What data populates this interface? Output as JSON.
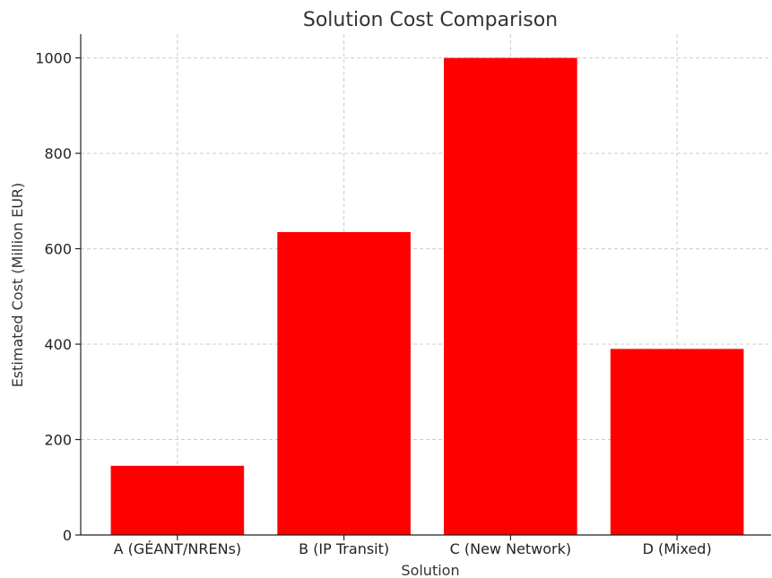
{
  "chart_data": {
    "type": "bar",
    "title": "Solution Cost Comparison",
    "xlabel": "Solution",
    "ylabel": "Estimated Cost (Million EUR)",
    "categories": [
      "A (GÉANT/NRENs)",
      "B (IP Transit)",
      "C (New Network)",
      "D (Mixed)"
    ],
    "values": [
      145,
      635,
      1000,
      390
    ],
    "ylim": [
      0,
      1050
    ],
    "yticks": [
      0,
      200,
      400,
      600,
      800,
      1000
    ],
    "grid": true,
    "bar_color": "#ff0000"
  }
}
